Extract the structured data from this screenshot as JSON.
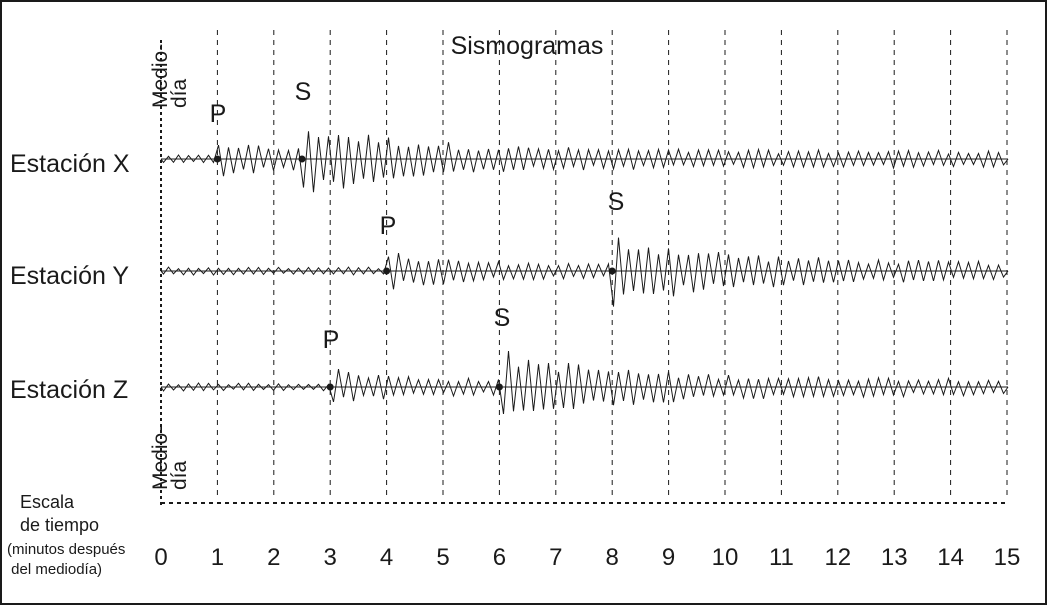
{
  "title": "Sismogramas",
  "noon_label_top": [
    "Medio-",
    "día"
  ],
  "noon_label_bottom": [
    "Medio-",
    "día"
  ],
  "axis": {
    "label_lines": [
      "Escala",
      "de tiempo"
    ],
    "note_lines": [
      "(minutos después",
      " del mediodía)"
    ],
    "ticks": [
      "0",
      "1",
      "2",
      "3",
      "4",
      "5",
      "6",
      "7",
      "8",
      "9",
      "10",
      "11",
      "12",
      "13",
      "14",
      "15"
    ],
    "min": 0,
    "max": 15
  },
  "stations": [
    {
      "name": "Estación X",
      "p_label": "P",
      "s_label": "S",
      "p_minute": 1,
      "s_minute": 2.5
    },
    {
      "name": "Estación Y",
      "p_label": "P",
      "s_label": "S",
      "p_minute": 4,
      "s_minute": 8
    },
    {
      "name": "Estación Z",
      "p_label": "P",
      "s_label": "S",
      "p_minute": 3,
      "s_minute": 6
    }
  ]
}
